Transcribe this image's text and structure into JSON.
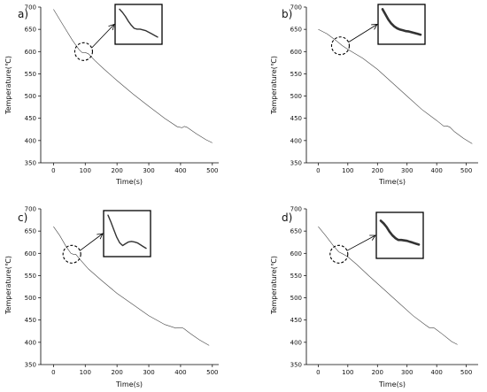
{
  "chart_data": [
    {
      "type": "line",
      "panel_label": "a)",
      "xlabel": "Time(s)",
      "ylabel": "Temperature(℃)",
      "xlim": [
        -40,
        520
      ],
      "ylim": [
        350,
        700
      ],
      "xticks": [
        0,
        100,
        200,
        300,
        400,
        500
      ],
      "yticks": [
        350,
        400,
        450,
        500,
        550,
        600,
        650,
        700
      ],
      "series": [
        {
          "x": [
            0,
            30,
            60,
            80,
            90,
            100,
            110,
            130,
            160,
            200,
            250,
            300,
            350,
            390,
            405,
            412,
            420,
            430,
            450,
            480,
            500
          ],
          "y": [
            695,
            660,
            625,
            605,
            598,
            598,
            595,
            580,
            560,
            535,
            505,
            477,
            450,
            431,
            429,
            432,
            430,
            425,
            415,
            402,
            395
          ]
        }
      ],
      "zoom_center": [
        95,
        600
      ],
      "inset_y": [
        0.12,
        0.2,
        0.3,
        0.42,
        0.52,
        0.6,
        0.62,
        0.62,
        0.64,
        0.66,
        0.7,
        0.74,
        0.78,
        0.82
      ]
    },
    {
      "type": "line",
      "panel_label": "b)",
      "xlabel": "Time(s)",
      "ylabel": "Temperature(℃)",
      "xlim": [
        -40,
        540
      ],
      "ylim": [
        350,
        700
      ],
      "xticks": [
        0,
        100,
        200,
        300,
        400,
        500
      ],
      "yticks": [
        350,
        400,
        450,
        500,
        550,
        600,
        650,
        700
      ],
      "series": [
        {
          "x": [
            0,
            30,
            60,
            80,
            100,
            120,
            150,
            200,
            250,
            300,
            350,
            400,
            425,
            435,
            445,
            460,
            490,
            520
          ],
          "y": [
            650,
            640,
            625,
            614,
            605,
            597,
            585,
            560,
            530,
            500,
            470,
            445,
            432,
            433,
            430,
            420,
            405,
            393
          ]
        }
      ],
      "zoom_center": [
        75,
        613
      ],
      "inset_y": [
        0.12,
        0.25,
        0.38,
        0.48,
        0.55,
        0.6,
        0.63,
        0.65,
        0.67,
        0.68,
        0.7,
        0.72,
        0.74,
        0.76
      ]
    },
    {
      "type": "line",
      "panel_label": "c)",
      "xlabel": "Time(s)",
      "ylabel": "Temperature(℃)",
      "xlim": [
        -40,
        520
      ],
      "ylim": [
        350,
        700
      ],
      "xticks": [
        0,
        100,
        200,
        300,
        400,
        500
      ],
      "yticks": [
        350,
        400,
        450,
        500,
        550,
        600,
        650,
        700
      ],
      "series": [
        {
          "x": [
            0,
            20,
            40,
            55,
            62,
            70,
            85,
            110,
            150,
            200,
            250,
            300,
            350,
            385,
            395,
            405,
            412,
            430,
            460,
            490
          ],
          "y": [
            660,
            640,
            615,
            600,
            598,
            598,
            585,
            565,
            540,
            510,
            485,
            460,
            440,
            432,
            433,
            433,
            430,
            420,
            405,
            393
          ]
        }
      ],
      "zoom_center": [
        58,
        598
      ],
      "inset_y": [
        0.1,
        0.25,
        0.42,
        0.58,
        0.7,
        0.76,
        0.72,
        0.68,
        0.67,
        0.68,
        0.7,
        0.74,
        0.78,
        0.82
      ]
    },
    {
      "type": "line",
      "panel_label": "d)",
      "xlabel": "Time(s)",
      "ylabel": "Temperature(℃)",
      "xlim": [
        -40,
        540
      ],
      "ylim": [
        350,
        700
      ],
      "xticks": [
        0,
        100,
        200,
        300,
        400,
        500
      ],
      "yticks": [
        350,
        400,
        450,
        500,
        550,
        600,
        650,
        700
      ],
      "series": [
        {
          "x": [
            0,
            25,
            50,
            70,
            85,
            100,
            130,
            170,
            220,
            270,
            320,
            360,
            375,
            385,
            392,
            400,
            420,
            450,
            470
          ],
          "y": [
            660,
            640,
            618,
            603,
            598,
            592,
            575,
            550,
            520,
            490,
            460,
            440,
            433,
            433,
            432,
            428,
            418,
            402,
            395
          ]
        }
      ],
      "zoom_center": [
        70,
        598
      ],
      "inset_y": [
        0.18,
        0.24,
        0.32,
        0.42,
        0.5,
        0.56,
        0.6,
        0.6,
        0.61,
        0.62,
        0.64,
        0.66,
        0.68,
        0.7
      ]
    }
  ]
}
